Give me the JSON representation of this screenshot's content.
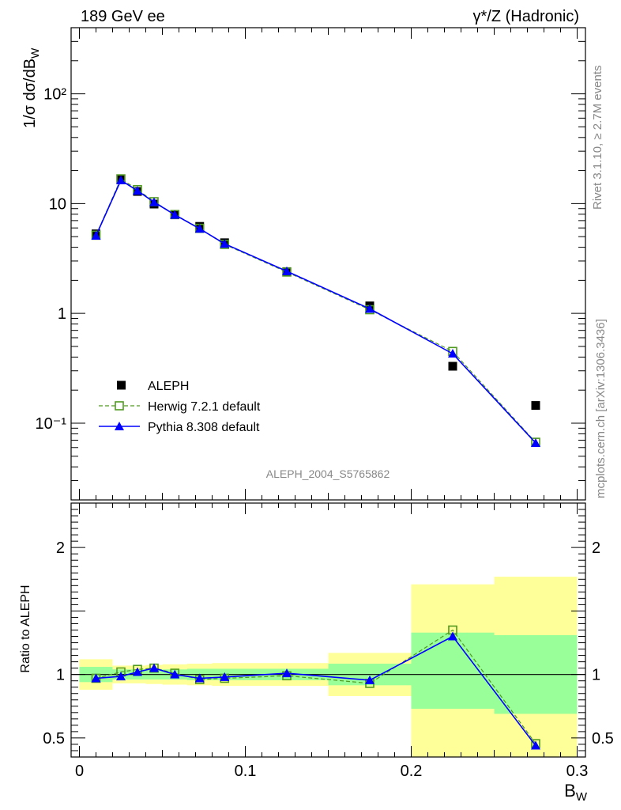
{
  "header": {
    "energy_label": "189 GeV ee",
    "process_label": "γ*/Z (Hadronic)"
  },
  "side": {
    "rivet_label": "Rivet 3.1.10, ≥ 2.7M events",
    "source_label": "mcplots.cern.ch [arXiv:1306.3436]"
  },
  "analysis_id": "ALEPH_2004_S5765862",
  "chart_data": [
    {
      "type": "line",
      "panel": "main",
      "ylabel": "1/σ dσ/dB_W",
      "yscale": "log",
      "ylim": [
        0.02,
        400
      ],
      "xlim": [
        -0.005,
        0.305
      ],
      "y_ticks": [
        {
          "value": 0.1,
          "label": "10⁻¹"
        },
        {
          "value": 1,
          "label": "1"
        },
        {
          "value": 10,
          "label": "10"
        },
        {
          "value": 100,
          "label": "10²"
        }
      ],
      "legend_position": "bottom-left",
      "series": [
        {
          "name": "ALEPH",
          "style": "data",
          "color": "#000000",
          "x": [
            0.01,
            0.025,
            0.035,
            0.045,
            0.0575,
            0.0725,
            0.0875,
            0.125,
            0.175,
            0.225,
            0.275
          ],
          "y": [
            5.3,
            16.5,
            12.9,
            9.9,
            7.9,
            6.2,
            4.4,
            2.4,
            1.17,
            0.33,
            0.145
          ]
        },
        {
          "name": "Herwig 7.2.1 default",
          "style": "dashed-open-square",
          "color": "#4f9a1f",
          "x": [
            0.01,
            0.025,
            0.035,
            0.045,
            0.0575,
            0.0725,
            0.0875,
            0.125,
            0.175,
            0.225,
            0.275
          ],
          "y": [
            5.15,
            16.8,
            13.4,
            10.4,
            7.95,
            5.95,
            4.25,
            2.38,
            1.08,
            0.45,
            0.067
          ]
        },
        {
          "name": "Pythia 8.308 default",
          "style": "solid-filled-triangle",
          "color": "#0000ff",
          "x": [
            0.01,
            0.025,
            0.035,
            0.045,
            0.0575,
            0.0725,
            0.0875,
            0.125,
            0.175,
            0.225,
            0.275
          ],
          "y": [
            5.1,
            16.3,
            13.1,
            10.3,
            7.9,
            5.9,
            4.3,
            2.42,
            1.1,
            0.43,
            0.066
          ]
        }
      ]
    },
    {
      "type": "line",
      "panel": "ratio",
      "xlabel": "B_W",
      "ylabel": "Ratio to ALEPH",
      "ylim": [
        0.35,
        2.35
      ],
      "xlim": [
        -0.005,
        0.305
      ],
      "x_ticks": [
        0,
        0.1,
        0.2,
        0.3
      ],
      "x_tick_labels": [
        "0",
        "0.1",
        "0.2",
        "0.3"
      ],
      "y_ticks": [
        0.5,
        1,
        2
      ],
      "y_tick_labels": [
        "0.5",
        "1",
        "2"
      ],
      "reference_line": 1,
      "bands": {
        "outer_color": "#ffff99",
        "inner_color": "#99ff99",
        "bins": [
          {
            "x0": 0.0,
            "x1": 0.02,
            "outer": [
              0.88,
              1.12
            ],
            "inner": [
              0.94,
              1.06
            ]
          },
          {
            "x0": 0.02,
            "x1": 0.04,
            "outer": [
              0.93,
              1.07
            ],
            "inner": [
              0.96,
              1.04
            ]
          },
          {
            "x0": 0.04,
            "x1": 0.05,
            "outer": [
              0.925,
              1.075
            ],
            "inner": [
              0.96,
              1.04
            ]
          },
          {
            "x0": 0.05,
            "x1": 0.065,
            "outer": [
              0.92,
              1.08
            ],
            "inner": [
              0.96,
              1.04
            ]
          },
          {
            "x0": 0.065,
            "x1": 0.08,
            "outer": [
              0.915,
              1.085
            ],
            "inner": [
              0.955,
              1.045
            ]
          },
          {
            "x0": 0.08,
            "x1": 0.1,
            "outer": [
              0.91,
              1.09
            ],
            "inner": [
              0.955,
              1.045
            ]
          },
          {
            "x0": 0.1,
            "x1": 0.15,
            "outer": [
              0.91,
              1.09
            ],
            "inner": [
              0.955,
              1.045
            ]
          },
          {
            "x0": 0.15,
            "x1": 0.2,
            "outer": [
              0.83,
              1.17
            ],
            "inner": [
              0.915,
              1.085
            ]
          },
          {
            "x0": 0.2,
            "x1": 0.25,
            "outer": [
              0.35,
              1.71
            ],
            "inner": [
              0.73,
              1.33
            ]
          },
          {
            "x0": 0.25,
            "x1": 0.3,
            "outer": [
              0.35,
              1.77
            ],
            "inner": [
              0.69,
              1.31
            ]
          }
        ]
      },
      "series": [
        {
          "name": "Herwig 7.2.1 default",
          "style": "dashed-open-square",
          "color": "#4f9a1f",
          "x": [
            0.01,
            0.025,
            0.035,
            0.045,
            0.0575,
            0.0725,
            0.0875,
            0.125,
            0.175,
            0.225,
            0.275
          ],
          "y": [
            0.97,
            1.02,
            1.04,
            1.05,
            1.01,
            0.96,
            0.97,
            0.99,
            0.93,
            1.35,
            0.455
          ]
        },
        {
          "name": "Pythia 8.308 default",
          "style": "solid-filled-triangle",
          "color": "#0000ff",
          "x": [
            0.01,
            0.025,
            0.035,
            0.045,
            0.0575,
            0.0725,
            0.0875,
            0.125,
            0.175,
            0.225,
            0.275
          ],
          "y": [
            0.97,
            0.985,
            1.02,
            1.05,
            1.0,
            0.97,
            0.98,
            1.01,
            0.955,
            1.3,
            0.44
          ]
        }
      ]
    }
  ]
}
